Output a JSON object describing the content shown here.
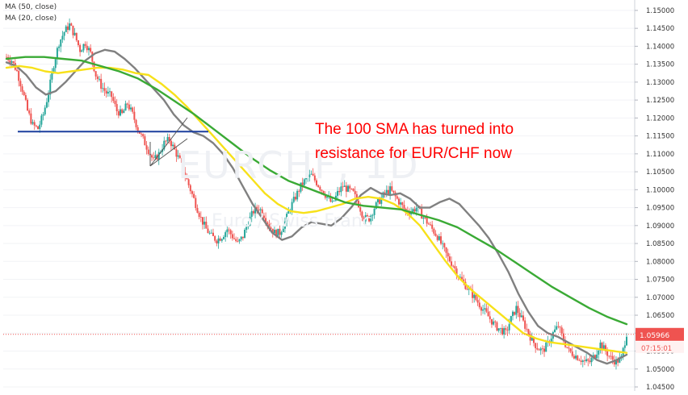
{
  "legend": {
    "ma50": "MA (50, close)",
    "ma20": "MA (20, close)"
  },
  "annotation": {
    "line1": "The 100 SMA has turned into",
    "line2": "resistance for EUR/CHF now"
  },
  "watermark": {
    "symbol": "EURCHF, 1D",
    "description": "Euro / Swiss Franc"
  },
  "colors": {
    "up": "#26a69a",
    "down": "#ef5350",
    "ma20": "#808080",
    "ma50": "#f7e11a",
    "ma100": "#3aaa35",
    "support": "#1c3f9e",
    "price_line": "#ef5350",
    "price_label_bg": "#ef5350",
    "annotation": "#ff0000"
  },
  "chart_data": {
    "type": "line",
    "title": "",
    "xlabel": "",
    "ylabel": "",
    "ylim": [
      1.045,
      1.152
    ],
    "y_ticks": [
      "1.15000",
      "1.14500",
      "1.14000",
      "1.13500",
      "1.13000",
      "1.12500",
      "1.12000",
      "1.11500",
      "1.11000",
      "1.10500",
      "1.10000",
      "1.09500",
      "1.09000",
      "1.08500",
      "1.08000",
      "1.07500",
      "1.07000",
      "1.06500",
      "1.06000",
      "1.05500",
      "1.05000",
      "1.04500"
    ],
    "current_price": {
      "label": "1.05966",
      "value": 1.05966
    },
    "countdown": {
      "label": "07:15:01"
    },
    "price_path": [
      1.137,
      1.136,
      1.133,
      1.128,
      1.122,
      1.118,
      1.117,
      1.121,
      1.127,
      1.135,
      1.141,
      1.144,
      1.146,
      1.143,
      1.139,
      1.141,
      1.138,
      1.132,
      1.129,
      1.127,
      1.126,
      1.122,
      1.121,
      1.124,
      1.121,
      1.117,
      1.114,
      1.111,
      1.108,
      1.11,
      1.113,
      1.114,
      1.111,
      1.108,
      1.104,
      1.1,
      1.096,
      1.092,
      1.089,
      1.087,
      1.086,
      1.087,
      1.089,
      1.087,
      1.085,
      1.087,
      1.091,
      1.094,
      1.095,
      1.093,
      1.09,
      1.088,
      1.088,
      1.091,
      1.095,
      1.098,
      1.101,
      1.103,
      1.104,
      1.102,
      1.1,
      1.098,
      1.096,
      1.099,
      1.101,
      1.1,
      1.099,
      1.096,
      1.092,
      1.092,
      1.095,
      1.097,
      1.099,
      1.1,
      1.098,
      1.096,
      1.094,
      1.094,
      1.095,
      1.093,
      1.091,
      1.089,
      1.087,
      1.084,
      1.081,
      1.079,
      1.076,
      1.074,
      1.072,
      1.07,
      1.068,
      1.066,
      1.064,
      1.062,
      1.061,
      1.06,
      1.064,
      1.067,
      1.064,
      1.061,
      1.058,
      1.056,
      1.055,
      1.057,
      1.06,
      1.062,
      1.058,
      1.055,
      1.054,
      1.053,
      1.052,
      1.052,
      1.054,
      1.057,
      1.055,
      1.053,
      1.052,
      1.053,
      1.06
    ],
    "series": [
      {
        "key": "ma20",
        "name": "MA (20, close)",
        "values": [
          1.1355,
          1.1345,
          1.132,
          1.1285,
          1.1265,
          1.1275,
          1.13,
          1.133,
          1.136,
          1.138,
          1.139,
          1.1385,
          1.1365,
          1.134,
          1.131,
          1.128,
          1.125,
          1.121,
          1.118,
          1.116,
          1.115,
          1.113,
          1.11,
          1.106,
          1.101,
          1.096,
          1.092,
          1.088,
          1.086,
          1.087,
          1.0895,
          1.091,
          1.0905,
          1.09,
          1.092,
          1.095,
          1.0985,
          1.1005,
          1.099,
          1.0985,
          1.099,
          1.0975,
          1.095,
          1.095,
          1.0965,
          1.0975,
          1.096,
          1.093,
          1.09,
          1.0865,
          1.082,
          1.077,
          1.071,
          1.066,
          1.062,
          1.06,
          1.059,
          1.0575,
          1.056,
          1.0545,
          1.0525,
          1.0515,
          1.0525,
          1.054
        ]
      },
      {
        "key": "ma50",
        "name": "MA (50, close)",
        "values": [
          1.134,
          1.1345,
          1.134,
          1.133,
          1.1325,
          1.133,
          1.1335,
          1.134,
          1.134,
          1.1335,
          1.1325,
          1.132,
          1.1295,
          1.1265,
          1.123,
          1.119,
          1.115,
          1.111,
          1.107,
          1.103,
          1.099,
          1.096,
          1.094,
          1.0935,
          1.094,
          1.095,
          1.096,
          1.0975,
          1.098,
          1.0975,
          1.096,
          1.0935,
          1.09,
          1.085,
          1.08,
          1.0755,
          1.072,
          1.069,
          1.066,
          1.063,
          1.06,
          1.0585,
          1.0575,
          1.057,
          1.0565,
          1.056,
          1.0555,
          1.055,
          1.0545
        ]
      },
      {
        "key": "ma100",
        "name": "100 SMA",
        "values": [
          1.1365,
          1.137,
          1.137,
          1.1365,
          1.136,
          1.1345,
          1.133,
          1.131,
          1.128,
          1.1245,
          1.121,
          1.117,
          1.113,
          1.109,
          1.1055,
          1.1025,
          1.1005,
          1.0985,
          1.0965,
          1.0955,
          1.095,
          1.0945,
          1.093,
          1.0915,
          1.0895,
          1.0865,
          1.0835,
          1.08,
          1.0765,
          1.073,
          1.07,
          1.067,
          1.0645,
          1.0625
        ]
      }
    ],
    "support_line": 1.1162
  }
}
